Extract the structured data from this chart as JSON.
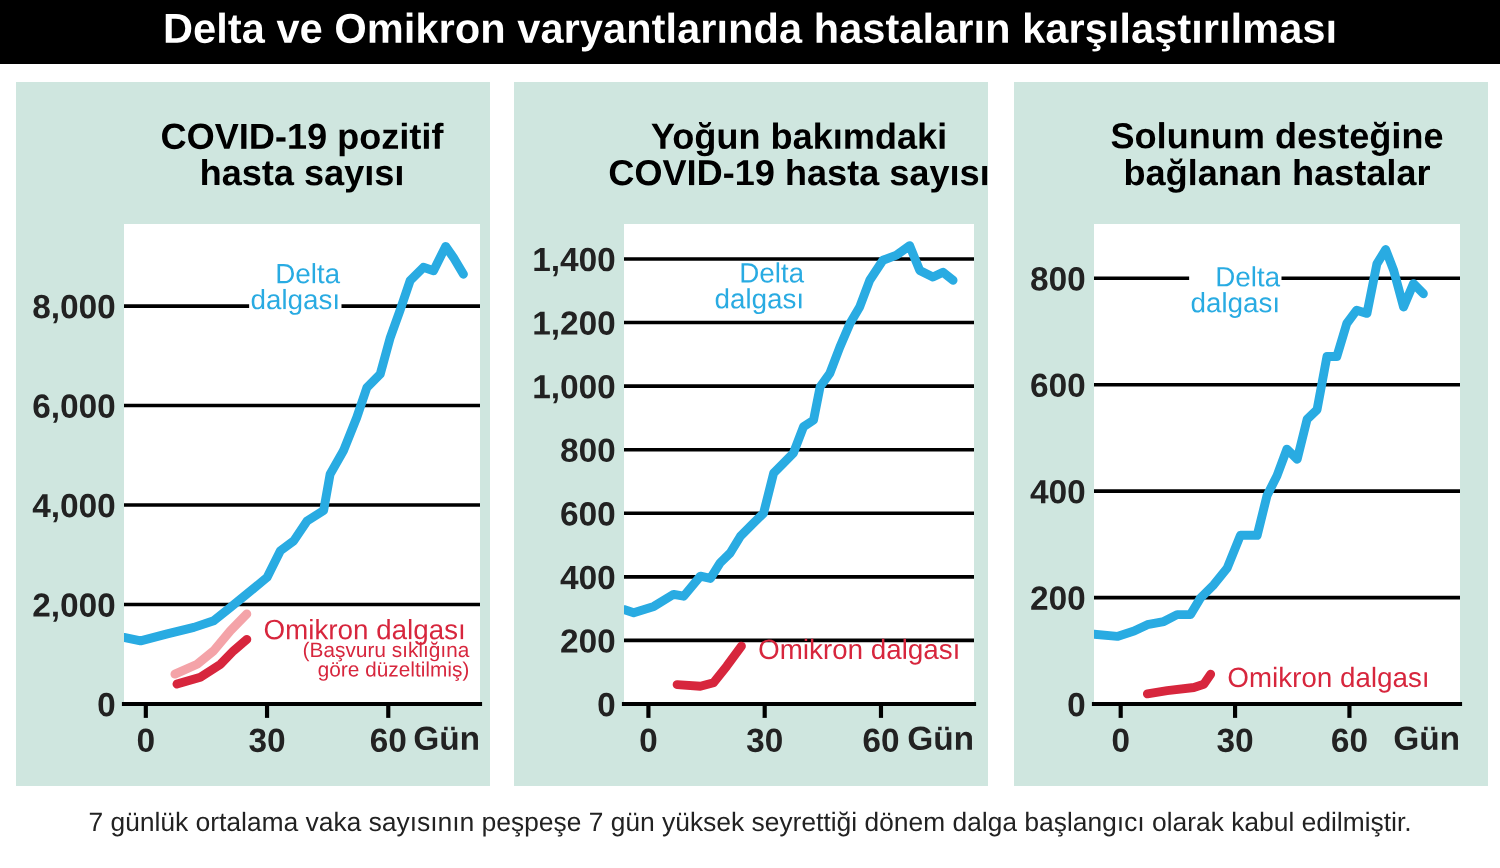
{
  "chart_data": [
    {
      "type": "line",
      "title": "COVID-19 pozitif\nhasta sayısı",
      "xlabel": "Gün",
      "annotations": [
        "Delta ve Omikron varyantlarında hastaların karşılaştırılması",
        "7 günlük ortalama vaka sayısının peşpeşe 7 gün yüksek seyrettiği dönem dalga başlangıcı olarak kabul edilmiştir.",
        "(Başvuru sıklığına\ngöre düzeltilmiş)"
      ],
      "xlim": [
        -5.4,
        82.7
      ],
      "xticks": [
        0,
        30,
        60
      ],
      "ylim": [
        0,
        9650
      ],
      "yticks": [
        {
          "value": 0,
          "label": "0"
        },
        {
          "value": 2000,
          "label": "2,000"
        },
        {
          "value": 4000,
          "label": "4,000"
        },
        {
          "value": 6000,
          "label": "6,000"
        },
        {
          "value": 8000,
          "label": "8,000"
        }
      ],
      "grid": "y",
      "series": [
        {
          "name": "Delta\ndalgası",
          "color": "#29abe2",
          "x": [
            -5.4,
            -1.3,
            5.3,
            11.9,
            16.8,
            20.9,
            25,
            30,
            33.3,
            36.6,
            39.9,
            44,
            45.6,
            48.9,
            52.2,
            54.7,
            58,
            60.5,
            62.9,
            65.4,
            68.7,
            71.2,
            74.2,
            76.1,
            78.6
          ],
          "values": [
            1340,
            1270,
            1410,
            1540,
            1675,
            1940,
            2210,
            2545,
            3080,
            3280,
            3680,
            3890,
            4620,
            5090,
            5760,
            6360,
            6630,
            7370,
            7910,
            8510,
            8780,
            8710,
            9200,
            8980,
            8640
          ]
        },
        {
          "color": "#f4a3a8",
          "x": [
            7.2,
            12.7,
            16.8,
            20.9,
            25
          ],
          "values": [
            600,
            800,
            1070,
            1470,
            1810
          ]
        },
        {
          "name": "Omikron dalgası",
          "color": "#d7263d",
          "x": [
            7.7,
            13.5,
            18.5,
            21.7,
            25
          ],
          "values": [
            400,
            540,
            800,
            1070,
            1300
          ]
        }
      ]
    },
    {
      "type": "line",
      "title": "Yoğun bakımdaki\nCOVID-19 hasta sayısı",
      "xlabel": "Gün",
      "xlim": [
        -6.3,
        84
      ],
      "xticks": [
        0,
        30,
        60
      ],
      "ylim": [
        0,
        1510
      ],
      "yticks": [
        {
          "value": 0,
          "label": "0"
        },
        {
          "value": 200,
          "label": "200"
        },
        {
          "value": 400,
          "label": "400"
        },
        {
          "value": 600,
          "label": "600"
        },
        {
          "value": 800,
          "label": "800"
        },
        {
          "value": 1000,
          "label": "1,000"
        },
        {
          "value": 1200,
          "label": "1,200"
        },
        {
          "value": 1400,
          "label": "1,400"
        }
      ],
      "grid": "y",
      "series": [
        {
          "name": "Delta\ndalgası",
          "color": "#29abe2",
          "x": [
            -6.3,
            -3.8,
            1.4,
            6.5,
            9.1,
            13.4,
            16,
            18.5,
            21.1,
            23.7,
            27.1,
            29.7,
            32.3,
            34.8,
            37.4,
            40,
            42.6,
            44.3,
            46.8,
            49.4,
            52,
            54.5,
            57.1,
            60.5,
            64,
            67.4,
            70,
            73.4,
            76,
            78.6
          ],
          "values": [
            297,
            287,
            307,
            345,
            339,
            402,
            395,
            444,
            475,
            527,
            569,
            600,
            726,
            757,
            789,
            872,
            893,
            998,
            1040,
            1123,
            1197,
            1249,
            1333,
            1396,
            1412,
            1442,
            1364,
            1343,
            1358,
            1333
          ]
        },
        {
          "name": "Omikron dalgası",
          "color": "#d7263d",
          "x": [
            7.4,
            13.4,
            16.8,
            20.2,
            24
          ],
          "values": [
            61,
            56,
            67,
            119,
            182
          ]
        }
      ]
    },
    {
      "type": "line",
      "title": "Solunum desteğine\nbağlanan hastalar",
      "xlabel": "Gün",
      "xlim": [
        -7,
        89
      ],
      "xticks": [
        0,
        30,
        60
      ],
      "ylim": [
        0,
        902
      ],
      "yticks": [
        0,
        200,
        400,
        600,
        800
      ],
      "grid": "y",
      "series": [
        {
          "name": "Delta\ndalgası",
          "color": "#29abe2",
          "x": [
            -7,
            -0.9,
            3.5,
            7,
            11.3,
            14.8,
            18.3,
            20.9,
            24.4,
            27.9,
            31.4,
            35.8,
            38.4,
            41,
            43.6,
            46.3,
            48.9,
            51.5,
            54.1,
            56.7,
            59.3,
            61.9,
            64.6,
            67.2,
            69.5,
            71.6,
            74.2,
            76.8,
            79.4
          ],
          "values": [
            131,
            127,
            137,
            149,
            155,
            168,
            168,
            199,
            224,
            255,
            317,
            317,
            392,
            429,
            479,
            460,
            535,
            553,
            653,
            653,
            715,
            740,
            734,
            827,
            854,
            815,
            746,
            790,
            771
          ]
        },
        {
          "name": "Omikron dalgası",
          "color": "#d7263d",
          "x": [
            7,
            12.2,
            19.2,
            21.8,
            23.6
          ],
          "values": [
            19,
            25,
            31,
            37,
            56
          ]
        }
      ]
    }
  ]
}
